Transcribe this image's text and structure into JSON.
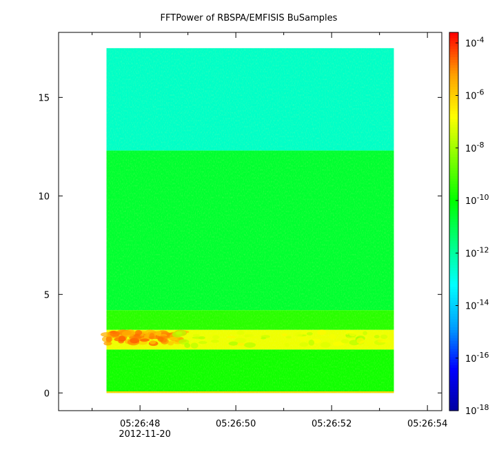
{
  "chart_data": {
    "type": "heatmap",
    "title": "FFTPower of RBSPA/EMFISIS  BuSamples",
    "xlabel": "",
    "ylabel": "",
    "x_ticks": [
      {
        "label": "05:26:48",
        "t": 48
      },
      {
        "label": "05:26:50",
        "t": 50
      },
      {
        "label": "05:26:52",
        "t": 52
      },
      {
        "label": "05:26:54",
        "t": 54
      }
    ],
    "x_minor_ticks": [
      47,
      49,
      51,
      53
    ],
    "x_date_label": "2012-11-20",
    "xlim_seconds": [
      46.3,
      54.3
    ],
    "data_x_range_seconds": [
      47.3,
      53.3
    ],
    "ylim": [
      -0.9,
      18.3
    ],
    "y_ticks": [
      0,
      5,
      10,
      15
    ],
    "data_y_range": [
      0,
      17.5
    ],
    "colorbar": {
      "scale": "log",
      "range_exp": [
        -18,
        -3.6
      ],
      "tick_exponents": [
        -4,
        -6,
        -8,
        -10,
        -12,
        -14,
        -16,
        -18
      ],
      "colormap": [
        "#0000a0",
        "#0000ff",
        "#00a0ff",
        "#00ffff",
        "#00ff80",
        "#00ff00",
        "#80ff00",
        "#ffff00",
        "#ffa000",
        "#ff0000"
      ]
    },
    "bands": [
      {
        "y_from": 12.3,
        "y_to": 17.5,
        "level_exp": -12.5,
        "description": "cyan-green"
      },
      {
        "y_from": 4.2,
        "y_to": 12.3,
        "level_exp": -10.6,
        "description": "green"
      },
      {
        "y_from": 3.2,
        "y_to": 4.2,
        "level_exp": -9.5,
        "description": "yellow-green"
      },
      {
        "y_from": 2.2,
        "y_to": 3.2,
        "level_exp": -7.0,
        "description": "orange-red emission"
      },
      {
        "y_from": 0.0,
        "y_to": 2.2,
        "level_exp": -9.8,
        "description": "green-yellow"
      },
      {
        "y_from": 0.0,
        "y_to": 0.08,
        "level_exp": -6.0,
        "description": "orange line"
      }
    ]
  }
}
